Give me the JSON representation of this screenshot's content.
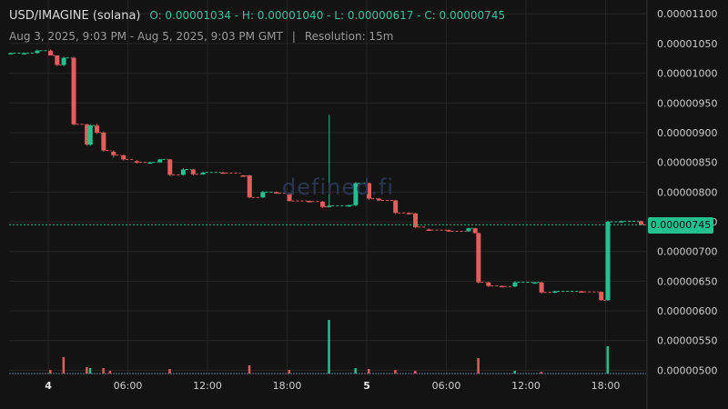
{
  "header": {
    "pair": "USD/IMAGINE (solana)",
    "ohlc": "O: 0.00001034 - H: 0.00001040 - L: 0.00000617 - C: 0.00000745",
    "range": "Aug 3, 2025, 9:03 PM - Aug 5, 2025, 9:03 PM GMT",
    "separator": "|",
    "resolution": "Resolution: 15m"
  },
  "watermark": "defined.fi",
  "last_price": "0.00000745",
  "colors": {
    "up": "#23c18f",
    "down": "#e35d5d",
    "background": "#131313",
    "grid": "#262626",
    "text": "#cccccc"
  },
  "chart_data": {
    "type": "candlestick",
    "x_ticks": [
      "4",
      "06:00",
      "12:00",
      "18:00",
      "5",
      "06:00",
      "12:00",
      "18:00"
    ],
    "y_ticks": [
      "0.00001100",
      "0.00001050",
      "0.00001000",
      "0.00000950",
      "0.00000900",
      "0.00000850",
      "0.00000800",
      "0.00000750",
      "0.00000700",
      "0.00000650",
      "0.00000600",
      "0.00000550",
      "0.00000500"
    ],
    "ylim": [
      4.93e-06,
      1.108e-05
    ],
    "candles": [
      {
        "t": "Aug 3 21:00",
        "o": 1.034e-05,
        "h": 1.035e-05,
        "l": 1.033e-05,
        "c": 1.034e-05
      },
      {
        "t": "Aug 3 22:00",
        "o": 1.034e-05,
        "h": 1.035e-05,
        "l": 1.033e-05,
        "c": 1.034e-05
      },
      {
        "t": "Aug 3 23:00",
        "o": 1.034e-05,
        "h": 1.04e-05,
        "l": 1.033e-05,
        "c": 1.038e-05
      },
      {
        "t": "Aug 4 00:00",
        "o": 1.038e-05,
        "h": 1.04e-05,
        "l": 1.03e-05,
        "c": 1.03e-05
      },
      {
        "t": "Aug 4 00:30",
        "o": 1.03e-05,
        "h": 1.03e-05,
        "l": 1.012e-05,
        "c": 1.014e-05
      },
      {
        "t": "Aug 4 01:00",
        "o": 1.014e-05,
        "h": 1.028e-05,
        "l": 1.012e-05,
        "c": 1.026e-05
      },
      {
        "t": "Aug 4 01:45",
        "o": 1.026e-05,
        "h": 1.028e-05,
        "l": 9.12e-06,
        "c": 9.14e-06
      },
      {
        "t": "Aug 4 02:45",
        "o": 9.14e-06,
        "h": 9.15e-06,
        "l": 8.78e-06,
        "c": 8.8e-06
      },
      {
        "t": "Aug 4 03:00",
        "o": 8.8e-06,
        "h": 9.14e-06,
        "l": 8.78e-06,
        "c": 9.12e-06
      },
      {
        "t": "Aug 4 03:30",
        "o": 9.12e-06,
        "h": 9.15e-06,
        "l": 8.98e-06,
        "c": 9e-06
      },
      {
        "t": "Aug 4 04:00",
        "o": 9e-06,
        "h": 9.02e-06,
        "l": 8.68e-06,
        "c": 8.7e-06
      },
      {
        "t": "Aug 4 04:45",
        "o": 8.68e-06,
        "h": 8.7e-06,
        "l": 8.58e-06,
        "c": 8.62e-06
      },
      {
        "t": "Aug 4 05:30",
        "o": 8.62e-06,
        "h": 8.63e-06,
        "l": 8.53e-06,
        "c": 8.55e-06
      },
      {
        "t": "Aug 4 06:30",
        "o": 8.52e-06,
        "h": 8.54e-06,
        "l": 8.48e-06,
        "c": 8.5e-06
      },
      {
        "t": "Aug 4 07:30",
        "o": 8.5e-06,
        "h": 8.51e-06,
        "l": 8.49e-06,
        "c": 8.5e-06
      },
      {
        "t": "Aug 4 08:15",
        "o": 8.5e-06,
        "h": 8.56e-06,
        "l": 8.49e-06,
        "c": 8.55e-06
      },
      {
        "t": "Aug 4 09:00",
        "o": 8.55e-06,
        "h": 8.56e-06,
        "l": 8.27e-06,
        "c": 8.29e-06
      },
      {
        "t": "Aug 4 10:00",
        "o": 8.29e-06,
        "h": 8.4e-06,
        "l": 8.28e-06,
        "c": 8.38e-06
      },
      {
        "t": "Aug 4 10:45",
        "o": 8.38e-06,
        "h": 8.39e-06,
        "l": 8.28e-06,
        "c": 8.3e-06
      },
      {
        "t": "Aug 4 11:30",
        "o": 8.3e-06,
        "h": 8.34e-06,
        "l": 8.29e-06,
        "c": 8.33e-06
      },
      {
        "t": "Aug 4 13:00",
        "o": 8.33e-06,
        "h": 8.34e-06,
        "l": 8.31e-06,
        "c": 8.32e-06
      },
      {
        "t": "Aug 4 14:30",
        "o": 8.28e-06,
        "h": 8.29e-06,
        "l": 8.26e-06,
        "c": 8.27e-06
      },
      {
        "t": "Aug 4 15:00",
        "o": 8.28e-06,
        "h": 8.29e-06,
        "l": 7.9e-06,
        "c": 7.91e-06
      },
      {
        "t": "Aug 4 16:00",
        "o": 7.91e-06,
        "h": 8.02e-06,
        "l": 7.9e-06,
        "c": 8e-06
      },
      {
        "t": "Aug 4 17:00",
        "o": 8e-06,
        "h": 8.01e-06,
        "l": 7.97e-06,
        "c": 7.98e-06
      },
      {
        "t": "Aug 4 18:00",
        "o": 7.98e-06,
        "h": 7.99e-06,
        "l": 7.84e-06,
        "c": 7.85e-06
      },
      {
        "t": "Aug 4 19:30",
        "o": 7.85e-06,
        "h": 7.86e-06,
        "l": 7.83e-06,
        "c": 7.84e-06
      },
      {
        "t": "Aug 4 20:30",
        "o": 7.84e-06,
        "h": 7.85e-06,
        "l": 7.73e-06,
        "c": 7.75e-06
      },
      {
        "t": "Aug 4 21:00",
        "o": 7.75e-06,
        "h": 9.3e-06,
        "l": 7.74e-06,
        "c": 7.77e-06
      },
      {
        "t": "Aug 4 22:30",
        "o": 7.77e-06,
        "h": 7.79e-06,
        "l": 7.75e-06,
        "c": 7.78e-06
      },
      {
        "t": "Aug 4 23:00",
        "o": 7.78e-06,
        "h": 8.17e-06,
        "l": 7.76e-06,
        "c": 8.15e-06
      },
      {
        "t": "Aug 5 00:00",
        "o": 8.15e-06,
        "h": 8.16e-06,
        "l": 7.87e-06,
        "c": 7.89e-06
      },
      {
        "t": "Aug 5 00:45",
        "o": 7.89e-06,
        "h": 7.9e-06,
        "l": 7.85e-06,
        "c": 7.86e-06
      },
      {
        "t": "Aug 5 02:00",
        "o": 7.86e-06,
        "h": 7.87e-06,
        "l": 7.63e-06,
        "c": 7.65e-06
      },
      {
        "t": "Aug 5 03:00",
        "o": 7.65e-06,
        "h": 7.66e-06,
        "l": 7.62e-06,
        "c": 7.64e-06
      },
      {
        "t": "Aug 5 03:30",
        "o": 7.64e-06,
        "h": 7.65e-06,
        "l": 7.39e-06,
        "c": 7.41e-06
      },
      {
        "t": "Aug 5 04:30",
        "o": 7.37e-06,
        "h": 7.39e-06,
        "l": 7.35e-06,
        "c": 7.36e-06
      },
      {
        "t": "Aug 5 06:00",
        "o": 7.36e-06,
        "h": 7.37e-06,
        "l": 7.33e-06,
        "c": 7.34e-06
      },
      {
        "t": "Aug 5 07:30",
        "o": 7.34e-06,
        "h": 7.4e-06,
        "l": 7.33e-06,
        "c": 7.39e-06
      },
      {
        "t": "Aug 5 08:00",
        "o": 7.39e-06,
        "h": 7.4e-06,
        "l": 7.3e-06,
        "c": 7.31e-06
      },
      {
        "t": "Aug 5 08:15",
        "o": 7.31e-06,
        "h": 7.32e-06,
        "l": 6.46e-06,
        "c": 6.48e-06
      },
      {
        "t": "Aug 5 09:00",
        "o": 6.48e-06,
        "h": 6.49e-06,
        "l": 6.4e-06,
        "c": 6.42e-06
      },
      {
        "t": "Aug 5 10:00",
        "o": 6.42e-06,
        "h": 6.43e-06,
        "l": 6.4e-06,
        "c": 6.41e-06
      },
      {
        "t": "Aug 5 11:00",
        "o": 6.41e-06,
        "h": 6.5e-06,
        "l": 6.4e-06,
        "c": 6.48e-06
      },
      {
        "t": "Aug 5 12:30",
        "o": 6.48e-06,
        "h": 6.49e-06,
        "l": 6.47e-06,
        "c": 6.48e-06
      },
      {
        "t": "Aug 5 13:00",
        "o": 6.48e-06,
        "h": 6.49e-06,
        "l": 6.29e-06,
        "c": 6.31e-06
      },
      {
        "t": "Aug 5 14:00",
        "o": 6.31e-06,
        "h": 6.34e-06,
        "l": 6.3e-06,
        "c": 6.33e-06
      },
      {
        "t": "Aug 5 16:00",
        "o": 6.33e-06,
        "h": 6.34e-06,
        "l": 6.31e-06,
        "c": 6.32e-06
      },
      {
        "t": "Aug 5 17:30",
        "o": 6.32e-06,
        "h": 6.33e-06,
        "l": 6.17e-06,
        "c": 6.18e-06
      },
      {
        "t": "Aug 5 18:00",
        "o": 6.18e-06,
        "h": 7.52e-06,
        "l": 6.17e-06,
        "c": 7.5e-06
      },
      {
        "t": "Aug 5 19:00",
        "o": 7.5e-06,
        "h": 7.52e-06,
        "l": 7.49e-06,
        "c": 7.51e-06
      },
      {
        "t": "Aug 5 20:30",
        "o": 7.51e-06,
        "h": 7.52e-06,
        "l": 7.44e-06,
        "c": 7.45e-06
      }
    ],
    "volume": [
      {
        "t": "Aug 4 00:00",
        "v": 4,
        "up": false
      },
      {
        "t": "Aug 4 01:00",
        "v": 18,
        "up": false
      },
      {
        "t": "Aug 4 02:45",
        "v": 7,
        "up": false
      },
      {
        "t": "Aug 4 03:00",
        "v": 6,
        "up": true
      },
      {
        "t": "Aug 4 04:00",
        "v": 6,
        "up": false
      },
      {
        "t": "Aug 4 04:30",
        "v": 3,
        "up": false
      },
      {
        "t": "Aug 4 09:00",
        "v": 5,
        "up": false
      },
      {
        "t": "Aug 4 15:00",
        "v": 9,
        "up": false
      },
      {
        "t": "Aug 4 18:00",
        "v": 4,
        "up": false
      },
      {
        "t": "Aug 4 21:00",
        "v": 59,
        "up": true
      },
      {
        "t": "Aug 4 23:00",
        "v": 6,
        "up": true
      },
      {
        "t": "Aug 5 00:00",
        "v": 5,
        "up": false
      },
      {
        "t": "Aug 5 02:00",
        "v": 4,
        "up": false
      },
      {
        "t": "Aug 5 03:30",
        "v": 3,
        "up": false
      },
      {
        "t": "Aug 5 08:15",
        "v": 17,
        "up": false
      },
      {
        "t": "Aug 5 11:00",
        "v": 3,
        "up": true
      },
      {
        "t": "Aug 5 13:00",
        "v": 2,
        "up": false
      },
      {
        "t": "Aug 5 18:00",
        "v": 30,
        "up": true
      }
    ],
    "grid": true
  }
}
